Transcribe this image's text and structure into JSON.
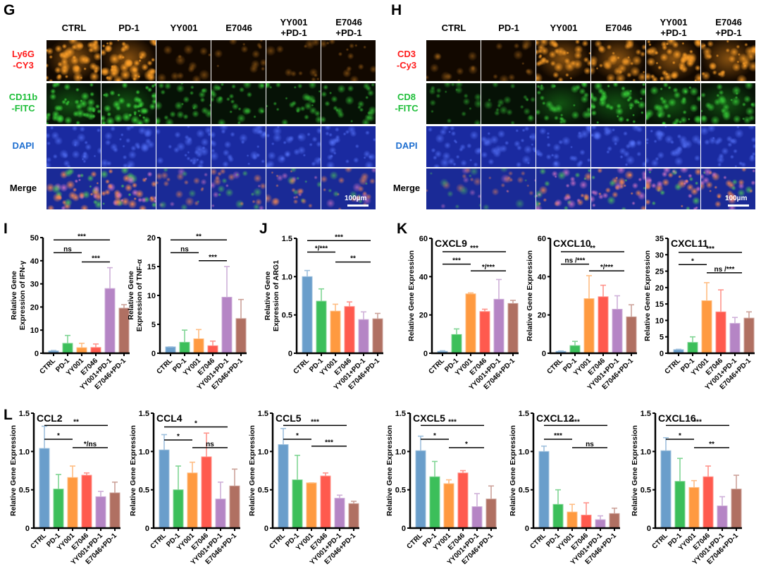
{
  "panels": {
    "G": {
      "letter": "G",
      "columns": [
        "CTRL",
        "PD-1",
        "YY001",
        "E7046",
        "YY001\n+PD-1",
        "E7046\n+PD-1"
      ],
      "rows": [
        "Ly6G\n-CY3",
        "CD11b\n-FITC",
        "DAPI",
        "Merge"
      ],
      "row_colors": [
        "#ff1a1a",
        "#1fbf3a",
        "#1f6fd0",
        "#000000"
      ],
      "scale_label": "100µm"
    },
    "H": {
      "letter": "H",
      "columns": [
        "CTRL",
        "PD-1",
        "YY001",
        "E7046",
        "YY001\n+PD-1",
        "E7046\n+PD-1"
      ],
      "rows": [
        "CD3\n-Cy3",
        "CD8\n-FITC",
        "DAPI",
        "Merge"
      ],
      "row_colors": [
        "#ff1a1a",
        "#1fbf3a",
        "#1f6fd0",
        "#000000"
      ],
      "scale_label": "100µm"
    },
    "I": {
      "letter": "I"
    },
    "J": {
      "letter": "J"
    },
    "K": {
      "letter": "K"
    },
    "L": {
      "letter": "L"
    }
  },
  "colors": [
    "#6a9ecb",
    "#3cbf5a",
    "#ff9a40",
    "#ff5a4e",
    "#b585c5",
    "#b07062"
  ],
  "chart_data": [
    {
      "id": "ifng",
      "panel": "I",
      "type": "bar",
      "title": "",
      "ylabel": [
        "Relative Gene",
        "Expression of IFN-γ"
      ],
      "ylim": [
        0,
        50
      ],
      "yticks": [
        "0",
        "10",
        "20",
        "30",
        "40",
        "50"
      ],
      "categories": [
        "CTRL",
        "PD-1",
        "YY001",
        "E7046",
        "YY001+PD-1",
        "E7046+PD-1"
      ],
      "values": [
        1,
        4.3,
        2.4,
        2.5,
        28,
        19.5
      ],
      "error_upper": [
        1.2,
        7.7,
        4.3,
        4.0,
        37,
        21
      ],
      "brackets": [
        {
          "from": 0,
          "to": 4,
          "y": 49,
          "label": "***"
        },
        {
          "from": 0,
          "to": 2,
          "y": 43.5,
          "label": "ns"
        },
        {
          "from": 2,
          "to": 4,
          "y": 39.5,
          "label": "***"
        }
      ]
    },
    {
      "id": "tnfa",
      "panel": "I",
      "type": "bar",
      "title": "",
      "ylabel": [
        "Relative Gene",
        "Expression of TNF-α"
      ],
      "ylim": [
        0,
        20
      ],
      "yticks": [
        "0",
        "5",
        "10",
        "15",
        "20"
      ],
      "categories": [
        "CTRL",
        "PD-1",
        "YY001",
        "E7046",
        "YY001+PD-1",
        "E7046+PD-1"
      ],
      "values": [
        1.1,
        1.9,
        2.5,
        1.3,
        9.7,
        6.0
      ],
      "error_upper": [
        1.1,
        4.0,
        4.1,
        2.1,
        15,
        9.3
      ],
      "brackets": [
        {
          "from": 0,
          "to": 4,
          "y": 19.6,
          "label": "**"
        },
        {
          "from": 0,
          "to": 2,
          "y": 17.4,
          "label": "ns"
        },
        {
          "from": 2,
          "to": 4,
          "y": 16,
          "label": "***"
        }
      ]
    },
    {
      "id": "arg1",
      "panel": "J",
      "type": "bar",
      "title": "",
      "ylabel": [
        "Relative Gene",
        "Expression of ARG1"
      ],
      "ylim": [
        0,
        1.5
      ],
      "yticks": [
        "0",
        "0.5",
        "1.0",
        "1.5"
      ],
      "categories": [
        "CTRL",
        "PD-1",
        "YY001",
        "E7046",
        "YY001+PD-1",
        "E7046+PD-1"
      ],
      "values": [
        1.0,
        0.68,
        0.55,
        0.61,
        0.44,
        0.45
      ],
      "error_upper": [
        1.08,
        0.84,
        0.64,
        0.67,
        0.54,
        0.52
      ],
      "brackets": [
        {
          "from": 0,
          "to": 4.5,
          "y": 1.47,
          "label": "***"
        },
        {
          "from": 0,
          "to": 2,
          "y": 1.32,
          "label": "*/***"
        },
        {
          "from": 2,
          "to": 4.5,
          "y": 1.19,
          "label": "**"
        }
      ]
    },
    {
      "id": "cxcl9",
      "panel": "K",
      "type": "bar",
      "title": "CXCL9",
      "ylabel": [
        "Relative Gene Expression"
      ],
      "ylim": [
        0,
        60
      ],
      "yticks": [
        "0",
        "20",
        "40",
        "60"
      ],
      "categories": [
        "CTRL",
        "PD-1",
        "YY001",
        "E7046",
        "YY001+PD-1",
        "E7046+PD-1"
      ],
      "values": [
        1,
        9.8,
        31,
        21.8,
        28.2,
        26
      ],
      "error_upper": [
        1.3,
        12.7,
        31.5,
        23,
        38.5,
        27.6
      ],
      "brackets": [
        {
          "from": 0,
          "to": 4.5,
          "y": 53,
          "label": "***"
        },
        {
          "from": 0,
          "to": 2,
          "y": 46.5,
          "label": "***"
        },
        {
          "from": 2,
          "to": 4.5,
          "y": 43,
          "label": "*/***"
        }
      ]
    },
    {
      "id": "cxcl10",
      "panel": "K",
      "type": "bar",
      "title": "CXCL10",
      "ylabel": [
        "Relative Gene Expression"
      ],
      "ylim": [
        0,
        60
      ],
      "yticks": [
        "0",
        "20",
        "40",
        "60"
      ],
      "categories": [
        "CTRL",
        "PD-1",
        "YY001",
        "E7046",
        "YY001+PD-1",
        "E7046+PD-1"
      ],
      "values": [
        1,
        4,
        28.5,
        29.5,
        23,
        19
      ],
      "error_upper": [
        1.2,
        6.2,
        40.5,
        35.5,
        30,
        25.3
      ],
      "brackets": [
        {
          "from": 0,
          "to": 4.5,
          "y": 53,
          "label": "**"
        },
        {
          "from": 0,
          "to": 2,
          "y": 46.5,
          "label": "ns /***"
        },
        {
          "from": 2,
          "to": 4.5,
          "y": 43,
          "label": "*/***"
        }
      ]
    },
    {
      "id": "cxcl11",
      "panel": "K",
      "type": "bar",
      "title": "CXCL11",
      "ylabel": [
        "Relative Gene Expression"
      ],
      "ylim": [
        0,
        35
      ],
      "yticks": [
        "0",
        "5",
        "10",
        "15",
        "20",
        "25",
        "30",
        "35"
      ],
      "categories": [
        "CTRL",
        "PD-1",
        "YY001",
        "E7046",
        "YY001+PD-1",
        "E7046+PD-1"
      ],
      "values": [
        1.1,
        3.3,
        16,
        12.6,
        9.1,
        10.7
      ],
      "error_upper": [
        1.2,
        5,
        21.5,
        19.3,
        10.9,
        12.6
      ],
      "brackets": [
        {
          "from": 0,
          "to": 4.5,
          "y": 30.7,
          "label": "***"
        },
        {
          "from": 0,
          "to": 2,
          "y": 27,
          "label": "*"
        },
        {
          "from": 2,
          "to": 4.5,
          "y": 24.5,
          "label": "ns /***"
        }
      ]
    },
    {
      "id": "ccl2",
      "panel": "L",
      "type": "bar",
      "title": "CCL2",
      "ylabel": [
        "Relative Gene Expression"
      ],
      "ylim": [
        0,
        1.5
      ],
      "yticks": [
        "0",
        "0.5",
        "1.0",
        "1.5"
      ],
      "categories": [
        "CTRL",
        "PD-1",
        "YY001",
        "E7046",
        "YY001+PD-1",
        "E7046+PD-1"
      ],
      "values": [
        1.04,
        0.51,
        0.66,
        0.69,
        0.41,
        0.46
      ],
      "error_upper": [
        1.33,
        0.7,
        0.81,
        0.72,
        0.48,
        0.6
      ],
      "brackets": [
        {
          "from": 0,
          "to": 4.5,
          "y": 1.34,
          "label": "**"
        },
        {
          "from": 0,
          "to": 2,
          "y": 1.16,
          "label": "*"
        },
        {
          "from": 2,
          "to": 4.5,
          "y": 1.05,
          "label": "*/ns"
        }
      ]
    },
    {
      "id": "ccl4",
      "panel": "L",
      "type": "bar",
      "title": "CCL4",
      "ylabel": [
        "Relative Gene Expression"
      ],
      "ylim": [
        0,
        1.5
      ],
      "yticks": [
        "0",
        "0.5",
        "1.0",
        "1.5"
      ],
      "categories": [
        "CTRL",
        "PD-1",
        "YY001",
        "E7046",
        "YY001+PD-1",
        "E7046+PD-1"
      ],
      "values": [
        1.02,
        0.5,
        0.72,
        0.93,
        0.38,
        0.55
      ],
      "error_upper": [
        1.22,
        0.81,
        0.86,
        1.24,
        0.6,
        0.77
      ],
      "brackets": [
        {
          "from": 0,
          "to": 4.5,
          "y": 1.32,
          "label": "*"
        },
        {
          "from": 0,
          "to": 2,
          "y": 1.15,
          "label": "*"
        },
        {
          "from": 2,
          "to": 4.5,
          "y": 1.05,
          "label": "ns"
        }
      ]
    },
    {
      "id": "ccl5",
      "panel": "L",
      "type": "bar",
      "title": "CCL5",
      "ylabel": [
        "Relative Gene Expression"
      ],
      "ylim": [
        0,
        1.5
      ],
      "yticks": [
        "0",
        "0.5",
        "1.0",
        "1.5"
      ],
      "categories": [
        "CTRL",
        "PD-1",
        "YY001",
        "E7046",
        "YY001+PD-1",
        "E7046+PD-1"
      ],
      "values": [
        1.09,
        0.63,
        0.59,
        0.68,
        0.39,
        0.32
      ],
      "error_upper": [
        1.3,
        0.95,
        0.59,
        0.72,
        0.43,
        0.35
      ],
      "brackets": [
        {
          "from": 0,
          "to": 4.5,
          "y": 1.34,
          "label": "***"
        },
        {
          "from": 0,
          "to": 2,
          "y": 1.16,
          "label": "*"
        },
        {
          "from": 2,
          "to": 4.5,
          "y": 1.07,
          "label": "***"
        }
      ]
    },
    {
      "id": "cxcl5",
      "panel": "L",
      "type": "bar",
      "title": "CXCL5",
      "ylabel": [
        "Relative Gene Expression"
      ],
      "ylim": [
        0,
        1.5
      ],
      "yticks": [
        "0",
        "0.5",
        "1.0",
        "1.5"
      ],
      "categories": [
        "CTRL",
        "PD-1",
        "YY001",
        "E7046",
        "YY001+PD-1",
        "E7046+PD-1"
      ],
      "values": [
        1.01,
        0.67,
        0.58,
        0.72,
        0.28,
        0.38
      ],
      "error_upper": [
        1.2,
        0.87,
        0.63,
        0.75,
        0.45,
        0.55
      ],
      "brackets": [
        {
          "from": 0,
          "to": 4.5,
          "y": 1.34,
          "label": "***"
        },
        {
          "from": 0,
          "to": 2,
          "y": 1.16,
          "label": "*"
        },
        {
          "from": 2,
          "to": 4.5,
          "y": 1.05,
          "label": "*"
        }
      ]
    },
    {
      "id": "cxcl12",
      "panel": "L",
      "type": "bar",
      "title": "CXCL12",
      "ylabel": [
        "Relative Gene Expression"
      ],
      "ylim": [
        0,
        1.5
      ],
      "yticks": [
        "0",
        "0.5",
        "1.0",
        "1.5"
      ],
      "categories": [
        "CTRL",
        "PD-1",
        "YY001",
        "E7046",
        "YY001+PD-1",
        "E7046+PD-1"
      ],
      "values": [
        1.0,
        0.31,
        0.21,
        0.17,
        0.11,
        0.19
      ],
      "error_upper": [
        1.07,
        0.5,
        0.31,
        0.33,
        0.16,
        0.26
      ],
      "brackets": [
        {
          "from": 0,
          "to": 4.5,
          "y": 1.34,
          "label": "***"
        },
        {
          "from": 0,
          "to": 2,
          "y": 1.16,
          "label": "***"
        },
        {
          "from": 2,
          "to": 4.5,
          "y": 1.05,
          "label": "ns"
        }
      ]
    },
    {
      "id": "cxcl16",
      "panel": "L",
      "type": "bar",
      "title": "CXCL16",
      "ylabel": [
        "Relative Gene Expression"
      ],
      "ylim": [
        0,
        1.5
      ],
      "yticks": [
        "0",
        "0.5",
        "1.0",
        "1.5"
      ],
      "categories": [
        "CTRL",
        "PD-1",
        "YY001",
        "E7046",
        "YY001+PD-1",
        "E7046+PD-1"
      ],
      "values": [
        1.01,
        0.61,
        0.53,
        0.67,
        0.29,
        0.51
      ],
      "error_upper": [
        1.18,
        0.91,
        0.62,
        0.81,
        0.41,
        0.69
      ],
      "brackets": [
        {
          "from": 0,
          "to": 4.5,
          "y": 1.34,
          "label": "***"
        },
        {
          "from": 0,
          "to": 2,
          "y": 1.16,
          "label": "*"
        },
        {
          "from": 2,
          "to": 4.5,
          "y": 1.05,
          "label": "**"
        }
      ]
    }
  ]
}
